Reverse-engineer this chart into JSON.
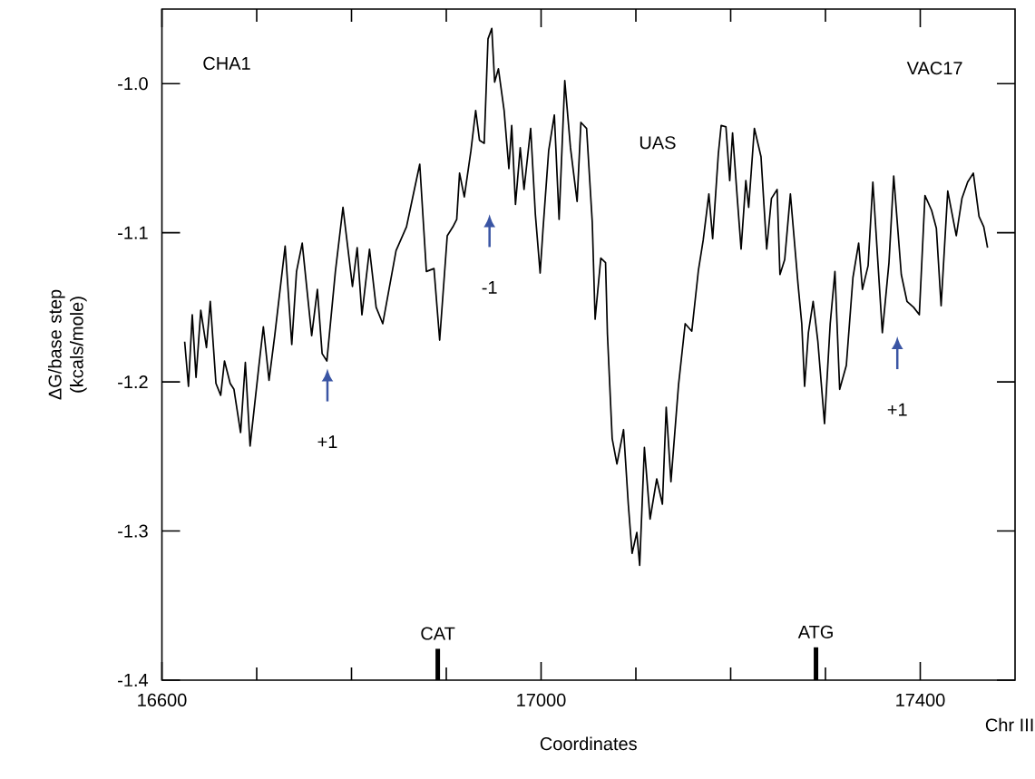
{
  "chart_data": {
    "type": "line",
    "xlabel": "Coordinates",
    "ylabel": "ΔG/base step (kcals/mole)",
    "xlim": [
      16600,
      17500
    ],
    "ylim": [
      -1.4,
      -0.95
    ],
    "xticks": [
      16600,
      {
        "value": 16700,
        "label": null
      },
      {
        "value": 16800,
        "label": null
      },
      {
        "value": 16900,
        "label": null
      },
      17000,
      {
        "value": 17100,
        "label": null
      },
      {
        "value": 17200,
        "label": null
      },
      {
        "value": 17300,
        "label": null
      },
      17400
    ],
    "yticks": [
      {
        "value": -1.4,
        "label": "-1.4"
      },
      {
        "value": -1.3,
        "label": "-1.3"
      },
      {
        "value": -1.2,
        "label": "-1.2"
      },
      {
        "value": -1.1,
        "label": "-1.1"
      },
      {
        "value": -1.0,
        "label": "-1.0"
      }
    ],
    "annotations": [
      "CHA1",
      "UAS",
      "VAC17",
      "Chr III",
      "+1",
      "-1",
      "+1",
      {
        "text": "CAT",
        "x": 16891,
        "y": -1.379
      },
      {
        "text": "ATG",
        "x": 17290,
        "y": -1.378
      }
    ],
    "series": [
      {
        "type": "bar",
        "color": "#000000",
        "x": [
          16891,
          17290
        ],
        "base": [
          -1.4,
          -1.4
        ],
        "values": [
          0.021,
          0.022
        ]
      },
      {
        "color": "#000000",
        "x": [
          16624,
          16628,
          16632,
          16636,
          16641,
          16647,
          16651,
          16657,
          16662,
          16666,
          16672,
          16676,
          16683,
          16688,
          16693,
          16702,
          16707,
          16713,
          16719,
          16730,
          16737,
          16742,
          16748,
          16758,
          16764,
          16769,
          16774,
          16783,
          16791,
          16801,
          16806,
          16811,
          16819,
          16826,
          16833,
          16847,
          16858,
          16865,
          16872,
          16879,
          16887,
          16893,
          16901,
          16907,
          16911,
          16914,
          16919,
          16926,
          16931,
          16935,
          16940,
          16944,
          16948,
          16951,
          16955,
          16961,
          16966,
          16969,
          16973,
          16978,
          16982,
          16989,
          16994,
          16999,
          17002,
          17008,
          17014,
          17019,
          17025,
          17031,
          17038,
          17042,
          17048,
          17054,
          17057,
          17063,
          17068,
          17070,
          17075,
          17080,
          17087,
          17092,
          17096,
          17101,
          17104,
          17109,
          17115,
          17122,
          17128,
          17132,
          17137,
          17145,
          17152,
          17159,
          17166,
          17171,
          17177,
          17181,
          17187,
          17190,
          17195,
          17199,
          17202,
          17207,
          17211,
          17216,
          17219,
          17225,
          17232,
          17238,
          17243,
          17249,
          17252,
          17257,
          17263,
          17271,
          17275,
          17278,
          17282,
          17287,
          17292,
          17299,
          17305,
          17310,
          17315,
          17322,
          17329,
          17335,
          17339,
          17345,
          17350,
          17360,
          17367,
          17372,
          17380,
          17386,
          17393,
          17399,
          17405,
          17412,
          17417,
          17422,
          17429,
          17438,
          17444,
          17450,
          17456,
          17462,
          17467,
          17471
        ],
        "values": [
          -1.173,
          -1.203,
          -1.155,
          -1.197,
          -1.152,
          -1.177,
          -1.146,
          -1.201,
          -1.209,
          -1.186,
          -1.201,
          -1.205,
          -1.234,
          -1.187,
          -1.243,
          -1.191,
          -1.163,
          -1.199,
          -1.169,
          -1.109,
          -1.175,
          -1.126,
          -1.107,
          -1.169,
          -1.138,
          -1.181,
          -1.186,
          -1.126,
          -1.083,
          -1.136,
          -1.11,
          -1.155,
          -1.111,
          -1.15,
          -1.161,
          -1.112,
          -1.096,
          -1.075,
          -1.054,
          -1.126,
          -1.124,
          -1.172,
          -1.102,
          -1.096,
          -1.091,
          -1.06,
          -1.076,
          -1.045,
          -1.018,
          -1.038,
          -1.04,
          -0.97,
          -0.963,
          -0.999,
          -0.99,
          -1.018,
          -1.057,
          -1.028,
          -1.081,
          -1.043,
          -1.071,
          -1.03,
          -1.088,
          -1.127,
          -1.098,
          -1.045,
          -1.021,
          -1.091,
          -0.998,
          -1.043,
          -1.079,
          -1.026,
          -1.03,
          -1.093,
          -1.158,
          -1.117,
          -1.12,
          -1.168,
          -1.238,
          -1.255,
          -1.232,
          -1.282,
          -1.315,
          -1.301,
          -1.323,
          -1.244,
          -1.292,
          -1.265,
          -1.282,
          -1.217,
          -1.267,
          -1.202,
          -1.161,
          -1.166,
          -1.125,
          -1.105,
          -1.074,
          -1.104,
          -1.047,
          -1.028,
          -1.029,
          -1.065,
          -1.033,
          -1.077,
          -1.111,
          -1.065,
          -1.083,
          -1.03,
          -1.049,
          -1.111,
          -1.077,
          -1.071,
          -1.128,
          -1.118,
          -1.074,
          -1.134,
          -1.161,
          -1.203,
          -1.167,
          -1.146,
          -1.173,
          -1.228,
          -1.161,
          -1.126,
          -1.205,
          -1.189,
          -1.13,
          -1.107,
          -1.138,
          -1.122,
          -1.066,
          -1.167,
          -1.12,
          -1.062,
          -1.128,
          -1.146,
          -1.15,
          -1.155,
          -1.075,
          -1.085,
          -1.097,
          -1.149,
          -1.072,
          -1.102,
          -1.077,
          -1.066,
          -1.06,
          -1.089,
          -1.096,
          -1.11
        ]
      }
    ]
  }
}
